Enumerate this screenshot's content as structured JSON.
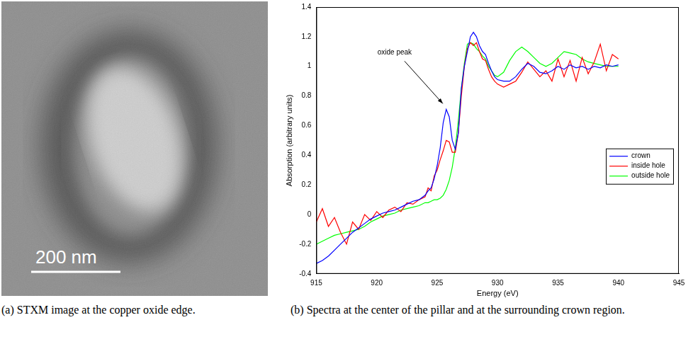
{
  "image": {
    "scale_bar": "200 nm",
    "caption": "(a) STXM image at the copper oxide edge."
  },
  "chart_data": {
    "type": "line",
    "caption": "(b) Spectra at the center of the pillar and at the surrounding crown region.",
    "xlabel": "Energy (eV)",
    "ylabel": "Absorption (arbitrary units)",
    "annotation": {
      "text": "oxide peak",
      "x": 925.7,
      "y": 0.72
    },
    "xlim": [
      915,
      945
    ],
    "xticks": [
      915,
      920,
      925,
      930,
      935,
      940,
      945
    ],
    "ylim": [
      -0.4,
      1.4
    ],
    "yticks": [
      -0.4,
      -0.2,
      0,
      0.2,
      0.4,
      0.6,
      0.8,
      1,
      1.2,
      1.4
    ],
    "grid": false,
    "legend": "right",
    "x": [
      915,
      915.5,
      916,
      916.5,
      917,
      917.5,
      918,
      918.5,
      919,
      919.5,
      920,
      920.5,
      921,
      921.5,
      922,
      922.5,
      923,
      923.5,
      924,
      924.25,
      924.5,
      924.75,
      925,
      925.25,
      925.5,
      925.75,
      926,
      926.25,
      926.5,
      926.75,
      927,
      927.25,
      927.5,
      927.75,
      928,
      928.25,
      928.5,
      928.75,
      929,
      929.25,
      929.5,
      929.75,
      930,
      930.5,
      931,
      931.5,
      932,
      932.5,
      933,
      933.5,
      934,
      934.5,
      935,
      935.5,
      936,
      936.5,
      937,
      937.5,
      938,
      938.5,
      939,
      939.5,
      940
    ],
    "series": [
      {
        "name": "crown",
        "color": "#0000ff",
        "values": [
          -0.33,
          -0.31,
          -0.28,
          -0.24,
          -0.2,
          -0.16,
          -0.12,
          -0.09,
          -0.06,
          -0.03,
          -0.01,
          0.01,
          0.02,
          0.03,
          0.05,
          0.07,
          0.09,
          0.1,
          0.13,
          0.16,
          0.18,
          0.24,
          0.33,
          0.45,
          0.62,
          0.71,
          0.66,
          0.5,
          0.44,
          0.55,
          0.85,
          1.0,
          1.1,
          1.2,
          1.23,
          1.2,
          1.14,
          1.1,
          1.08,
          1.02,
          0.97,
          0.93,
          0.91,
          0.9,
          0.9,
          0.93,
          0.98,
          1.02,
          1.0,
          0.96,
          0.95,
          0.97,
          1.0,
          0.98,
          1.01,
          0.99,
          1.0,
          0.98,
          1.0,
          0.99,
          1.01,
          1.0,
          1.01
        ]
      },
      {
        "name": "inside hole",
        "color": "#ff0000",
        "values": [
          -0.05,
          0.04,
          -0.08,
          -0.02,
          -0.12,
          -0.2,
          -0.05,
          -0.1,
          0.0,
          -0.04,
          0.02,
          -0.02,
          0.03,
          0.05,
          0.02,
          0.08,
          0.07,
          0.1,
          0.12,
          0.18,
          0.16,
          0.26,
          0.3,
          0.37,
          0.43,
          0.5,
          0.49,
          0.42,
          0.42,
          0.55,
          0.8,
          1.0,
          1.12,
          1.16,
          1.14,
          1.16,
          1.1,
          1.05,
          1.04,
          0.98,
          0.93,
          0.9,
          0.88,
          0.86,
          0.88,
          0.9,
          0.96,
          1.03,
          0.98,
          0.93,
          0.97,
          0.9,
          1.05,
          0.93,
          1.04,
          0.9,
          1.06,
          0.95,
          1.03,
          1.15,
          0.97,
          1.08,
          1.05
        ]
      },
      {
        "name": "outside hole",
        "color": "#00ff00",
        "values": [
          -0.2,
          -0.18,
          -0.16,
          -0.14,
          -0.13,
          -0.12,
          -0.11,
          -0.1,
          -0.08,
          -0.05,
          -0.03,
          -0.01,
          0.0,
          0.01,
          0.03,
          0.04,
          0.05,
          0.06,
          0.08,
          0.08,
          0.09,
          0.1,
          0.1,
          0.11,
          0.13,
          0.17,
          0.23,
          0.32,
          0.45,
          0.63,
          0.85,
          1.02,
          1.15,
          1.16,
          1.15,
          1.12,
          1.1,
          1.07,
          1.05,
          1.0,
          0.97,
          0.94,
          0.93,
          0.96,
          1.04,
          1.1,
          1.13,
          1.1,
          1.06,
          1.02,
          1.0,
          1.02,
          1.06,
          1.1,
          1.09,
          1.08,
          1.05,
          1.03,
          1.02,
          1.01,
          1.0,
          1.0,
          1.0
        ]
      }
    ]
  }
}
